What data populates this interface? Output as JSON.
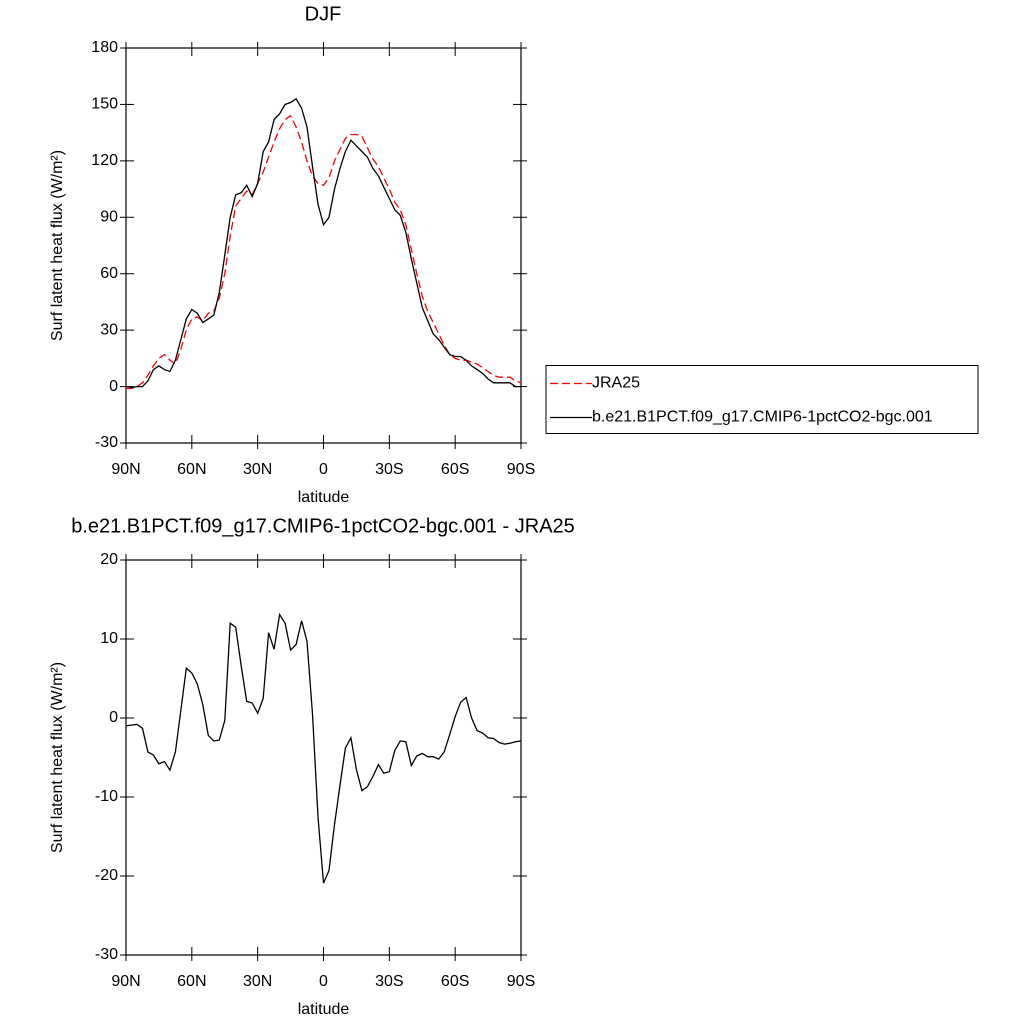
{
  "chart_data": [
    {
      "type": "line",
      "title": "DJF",
      "xlabel": "latitude",
      "ylabel": "Surf latent heat flux (W/m²)",
      "x": [
        90,
        87.5,
        85,
        82.5,
        80,
        77.5,
        75,
        72.5,
        70,
        67.5,
        65,
        62.5,
        60,
        57.5,
        55,
        52.5,
        50,
        47.5,
        45,
        42.5,
        40,
        37.5,
        35,
        32.5,
        30,
        27.5,
        25,
        22.5,
        20,
        17.5,
        15,
        12.5,
        10,
        7.5,
        5,
        2.5,
        0,
        -2.5,
        -5,
        -7.5,
        -10,
        -12.5,
        -15,
        -17.5,
        -20,
        -22.5,
        -25,
        -27.5,
        -30,
        -32.5,
        -35,
        -37.5,
        -40,
        -42.5,
        -45,
        -47.5,
        -50,
        -52.5,
        -55,
        -57.5,
        -60,
        -62.5,
        -65,
        -67.5,
        -70,
        -72.5,
        -75,
        -77.5,
        -80,
        -82.5,
        -85,
        -87.5,
        -90
      ],
      "series": [
        {
          "name": "JRA25",
          "color": "#ff0000",
          "line_style": "dashed",
          "values": [
            -1,
            -1,
            0,
            2,
            6,
            11,
            15,
            17,
            14,
            12,
            20,
            30,
            36,
            37,
            35,
            39,
            40,
            47,
            60,
            80,
            96,
            100,
            104,
            102,
            108,
            114,
            122,
            130,
            137,
            142,
            144,
            138,
            130,
            120,
            112,
            108,
            107,
            111,
            120,
            126,
            132,
            134,
            134,
            133,
            127,
            121,
            117,
            111,
            105,
            98,
            94,
            86,
            73,
            60,
            48,
            40,
            34,
            28,
            22,
            17,
            15,
            14,
            14,
            13,
            12,
            10,
            8,
            6,
            5,
            5,
            5,
            3,
            2
          ]
        },
        {
          "name": "b.e21.B1PCT.f09_g17.CMIP6-1pctCO2-bgc.001",
          "color": "#000000",
          "line_style": "solid",
          "values": [
            0,
            -0.5,
            0,
            0,
            3,
            9,
            11,
            9,
            8,
            14,
            25,
            36,
            41,
            39,
            34,
            36,
            38,
            50,
            70,
            90,
            102,
            103,
            107,
            101,
            108,
            125,
            130,
            142,
            145,
            150,
            151,
            153,
            148,
            138,
            117,
            97,
            86,
            90,
            105,
            116,
            125,
            131,
            128,
            125,
            122,
            116,
            112,
            106,
            100,
            94,
            91,
            82,
            68,
            55,
            42,
            35,
            28,
            25,
            21,
            17,
            16,
            16,
            14,
            11,
            9,
            7,
            4,
            2,
            2,
            2,
            2,
            0,
            0
          ]
        }
      ],
      "xlim": [
        90,
        -90
      ],
      "xticks": [
        {
          "value": 90,
          "label": "90N"
        },
        {
          "value": 60,
          "label": "60N"
        },
        {
          "value": 30,
          "label": "30N"
        },
        0,
        {
          "value": -30,
          "label": "30S"
        },
        {
          "value": -60,
          "label": "60S"
        },
        {
          "value": -90,
          "label": "90S"
        }
      ],
      "ylim": [
        -30,
        180
      ],
      "yticks": [
        -30,
        0,
        30,
        60,
        90,
        120,
        150,
        180
      ],
      "legend": "right"
    },
    {
      "type": "line",
      "title": "b.e21.B1PCT.f09_g17.CMIP6-1pctCO2-bgc.001 - JRA25",
      "xlabel": "latitude",
      "ylabel": "Surf latent heat flux (W/m²)",
      "x": [
        90,
        87.5,
        85,
        82.5,
        80,
        77.5,
        75,
        72.5,
        70,
        67.5,
        65,
        62.5,
        60,
        57.5,
        55,
        52.5,
        50,
        47.5,
        45,
        42.5,
        40,
        37.5,
        35,
        32.5,
        30,
        27.5,
        25,
        22.5,
        20,
        17.5,
        15,
        12.5,
        10,
        7.5,
        5,
        2.5,
        0,
        -2.5,
        -5,
        -7.5,
        -10,
        -12.5,
        -15,
        -17.5,
        -20,
        -22.5,
        -25,
        -27.5,
        -30,
        -32.5,
        -35,
        -37.5,
        -40,
        -42.5,
        -45,
        -47.5,
        -50,
        -52.5,
        -55,
        -57.5,
        -60,
        -62.5,
        -65,
        -67.5,
        -70,
        -72.5,
        -75,
        -77.5,
        -80,
        -82.5,
        -85,
        -87.5,
        -90
      ],
      "series": [
        {
          "color": "#000000",
          "line_style": "solid",
          "values": [
            -1,
            -0.9,
            -0.8,
            -1.3,
            -4.3,
            -4.7,
            -5.8,
            -5.5,
            -6.6,
            -4.3,
            1,
            6.3,
            5.7,
            4.3,
            1.7,
            -2.2,
            -2.9,
            -2.8,
            -0.3,
            12,
            11.5,
            6.6,
            2.1,
            1.9,
            0.6,
            2.5,
            10.8,
            8.7,
            13.1,
            12,
            8.6,
            9.3,
            12.3,
            9.7,
            0.5,
            -12.5,
            -20.9,
            -19.3,
            -13.5,
            -8.5,
            -3.8,
            -2.5,
            -6.5,
            -9.2,
            -8.7,
            -7.4,
            -5.9,
            -7,
            -6.8,
            -4.1,
            -2.9,
            -3,
            -6,
            -4.8,
            -4.5,
            -4.9,
            -4.9,
            -5.2,
            -4.3,
            -2.1,
            0.2,
            2,
            2.6,
            0,
            -1.6,
            -1.9,
            -2.5,
            -2.6,
            -3.1,
            -3.3,
            -3.2,
            -3,
            -2.9
          ]
        }
      ],
      "xlim": [
        90,
        -90
      ],
      "xticks": [
        {
          "value": 90,
          "label": "90N"
        },
        {
          "value": 60,
          "label": "60N"
        },
        {
          "value": 30,
          "label": "30N"
        },
        0,
        {
          "value": -30,
          "label": "30S"
        },
        {
          "value": -60,
          "label": "60S"
        },
        {
          "value": -90,
          "label": "90S"
        }
      ],
      "ylim": [
        -30,
        20
      ],
      "yticks": [
        -30,
        -20,
        -10,
        0,
        10,
        20
      ]
    }
  ]
}
